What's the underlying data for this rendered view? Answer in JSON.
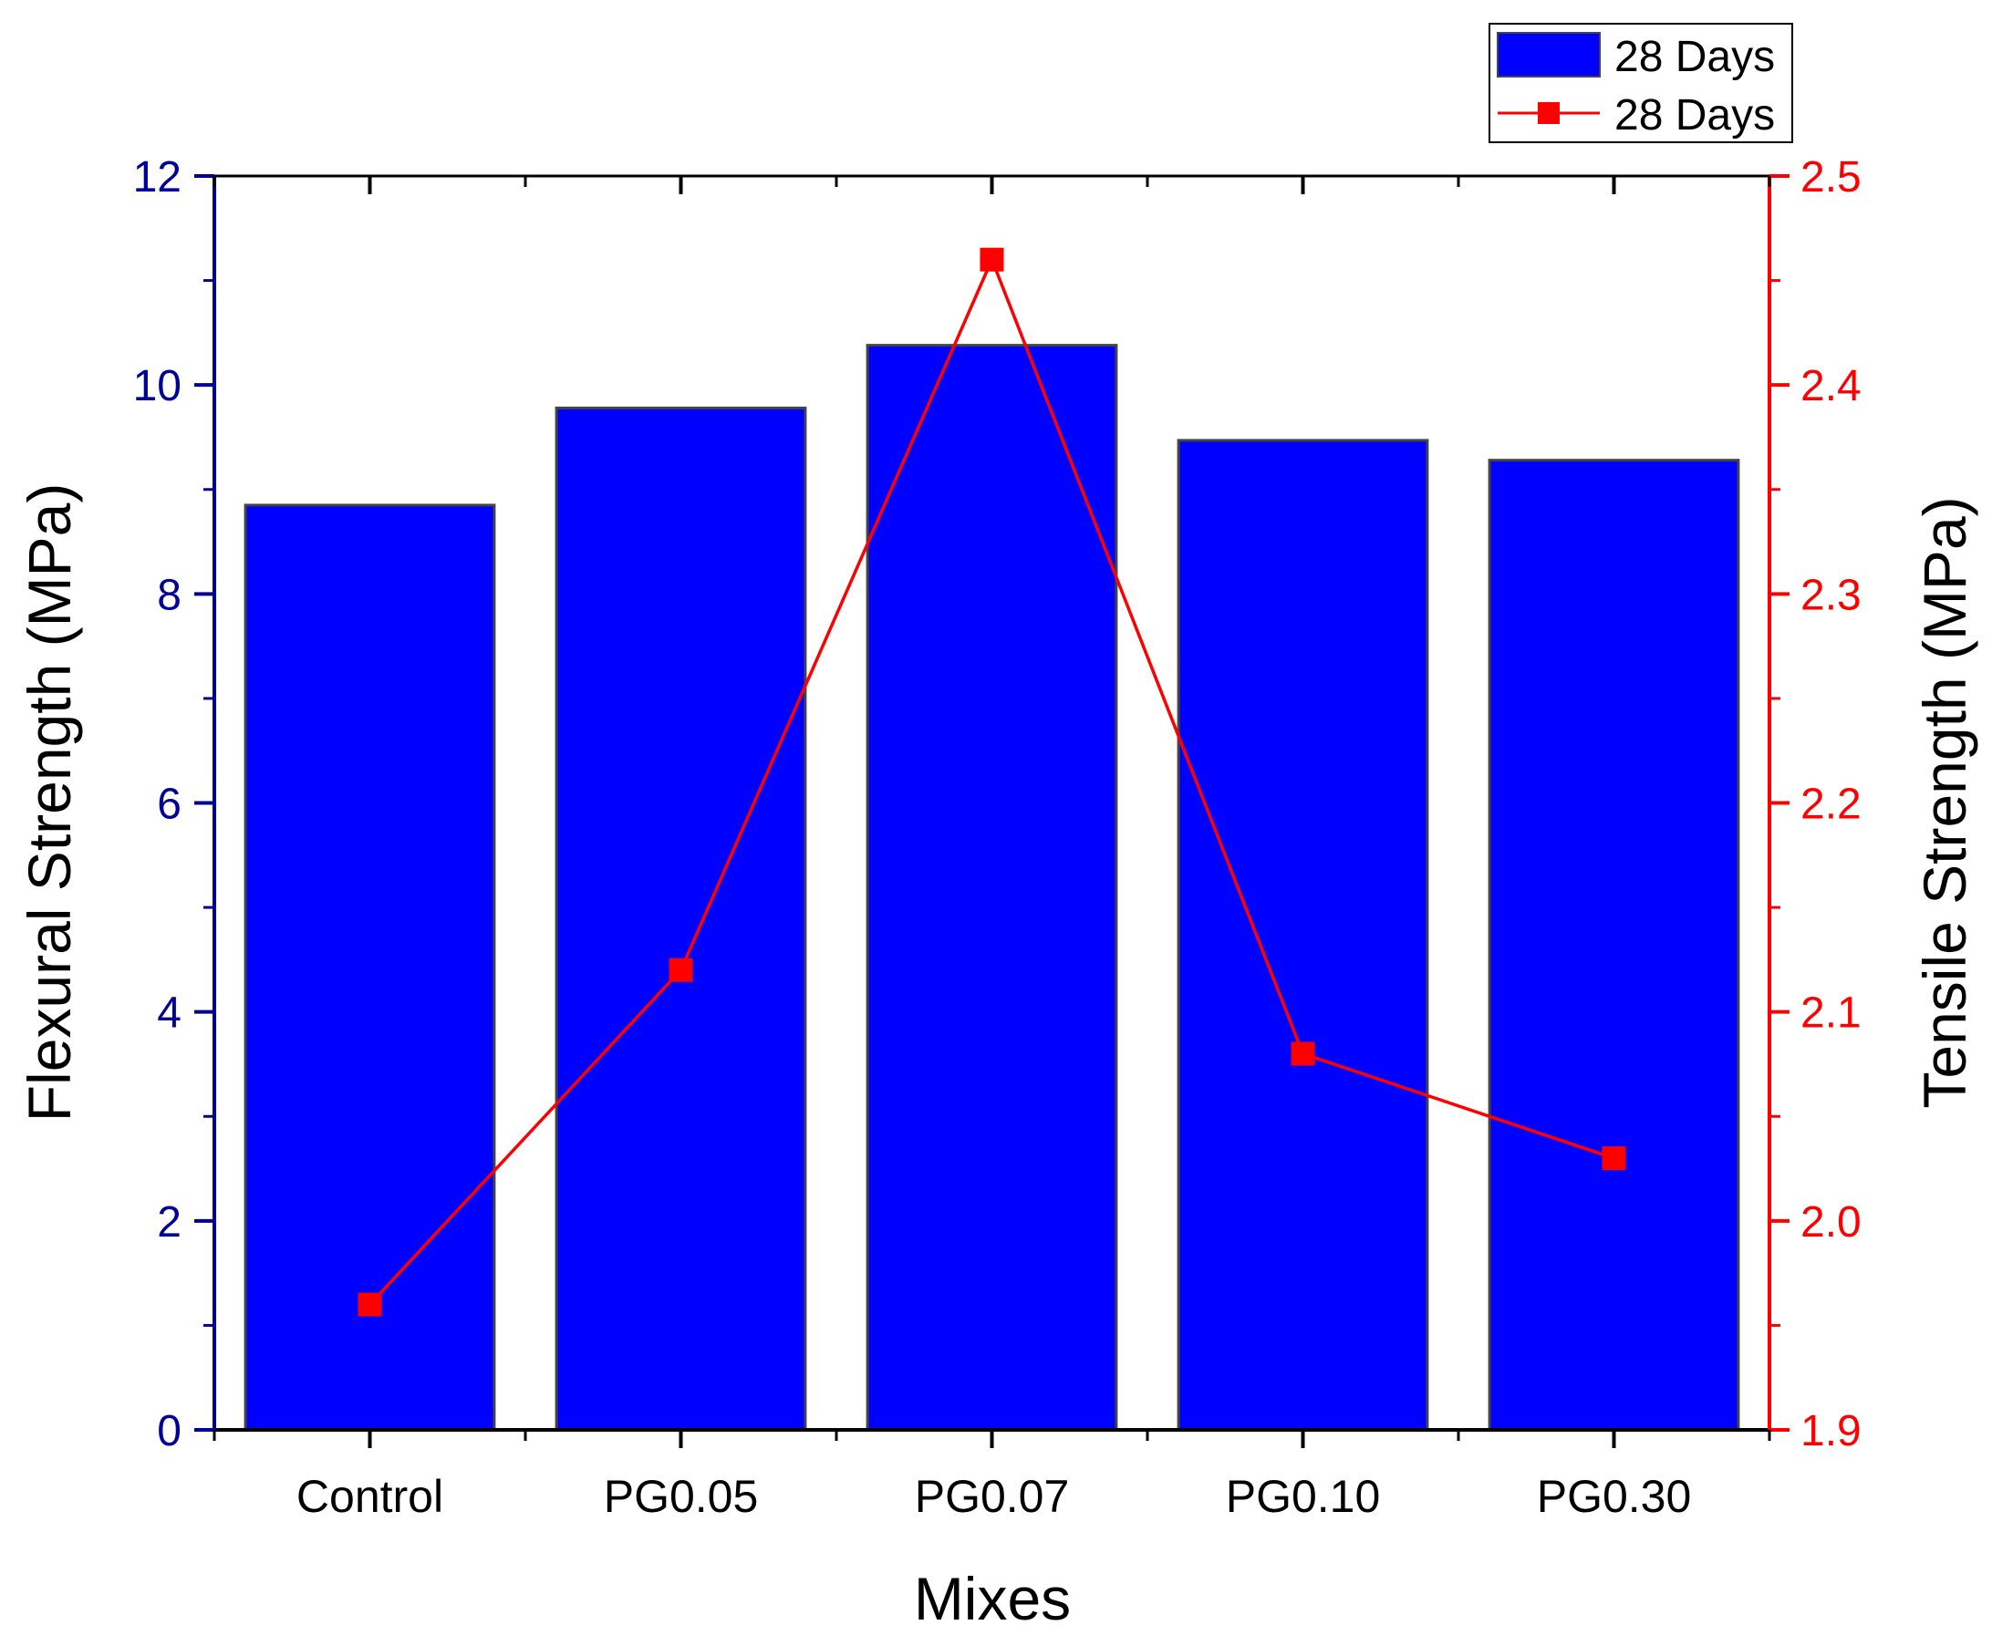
{
  "chart_data": {
    "type": "bar",
    "title": "",
    "xlabel": "Mixes",
    "categories": [
      "Control",
      "PG0.05",
      "PG0.07",
      "PG0.10",
      "PG0.30"
    ],
    "series": [
      {
        "name": "28 Days",
        "type": "bar",
        "axis": "left",
        "color": "#0000ff",
        "values": [
          8.85,
          9.78,
          10.38,
          9.47,
          9.28
        ]
      },
      {
        "name": "28 Days",
        "type": "line",
        "axis": "right",
        "color": "#ff0000",
        "marker": "square",
        "values": [
          1.96,
          2.12,
          2.46,
          2.08,
          2.03
        ]
      }
    ],
    "y_left": {
      "label": "Flexural Strength (MPa)",
      "ylim": [
        0,
        12
      ],
      "ticks": [
        "0",
        "2",
        "4",
        "6",
        "8",
        "10",
        "12"
      ],
      "color": "#000099"
    },
    "y_right": {
      "label": "Tensile Strength (MPa)",
      "ylim": [
        1.9,
        2.5
      ],
      "ticks": [
        "1.9",
        "2.0",
        "2.1",
        "2.2",
        "2.3",
        "2.4",
        "2.5"
      ],
      "color": "#ff0000"
    },
    "legend": {
      "position": "top-right",
      "entries": [
        "28 Days",
        "28 Days"
      ]
    },
    "grid": false
  }
}
